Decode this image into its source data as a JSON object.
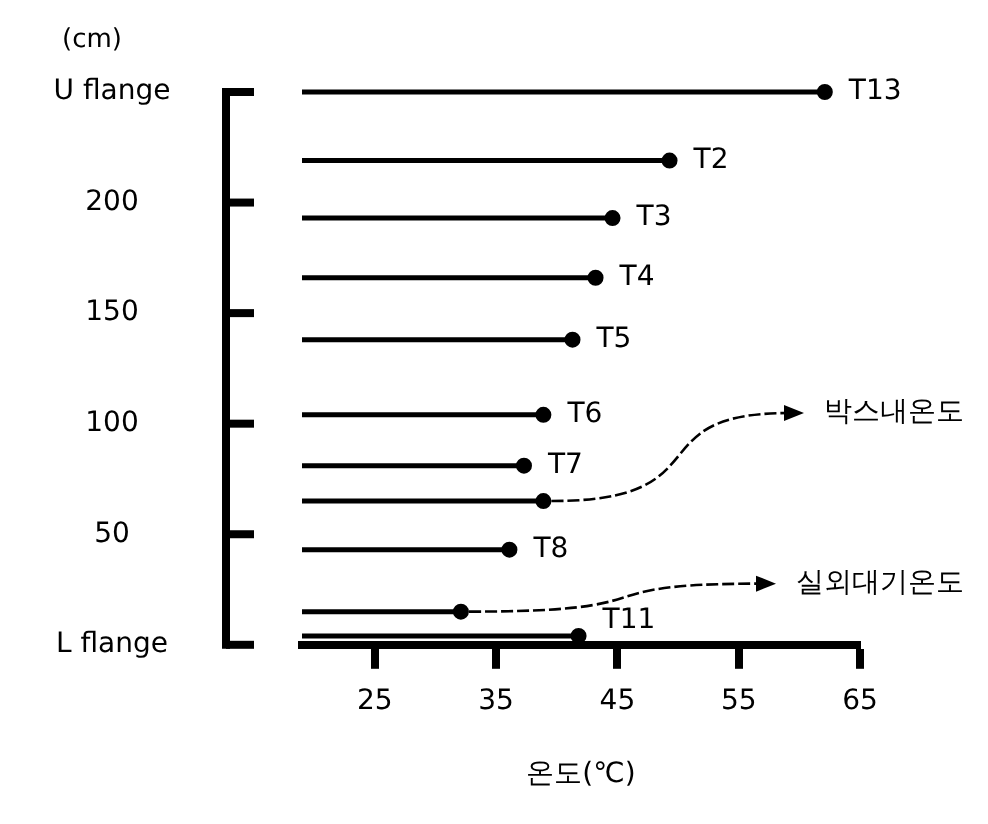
{
  "chart_data": {
    "type": "lollipop",
    "orientation": "horizontal",
    "xlabel": "온도(℃)",
    "ylabel": "(cm)",
    "x": [
      250,
      219,
      193,
      166,
      138,
      104,
      81,
      65,
      43,
      15,
      4
    ],
    "values": [
      62.1,
      49.3,
      44.6,
      43.2,
      41.3,
      38.9,
      37.3,
      38.9,
      36.1,
      32.1,
      41.8
    ],
    "value_labels": [
      "T13",
      "T2",
      "T3",
      "T4",
      "T5",
      "T6",
      "T7",
      null,
      "T8",
      null,
      "T11"
    ],
    "color": "#000000",
    "marker": "circle",
    "xlim": [
      19,
      65
    ],
    "xticks": [
      25,
      35,
      45,
      55,
      65
    ],
    "ylim": [
      0,
      250
    ],
    "yticks": [
      {
        "value": 0,
        "label": "L flange"
      },
      50,
      100,
      150,
      200,
      {
        "value": 250,
        "label": "U flange"
      }
    ],
    "annotations": [
      {
        "text": "박스내온도",
        "x": 38.9,
        "y": 65
      },
      {
        "text": "실외대기온도",
        "x": 32.1,
        "y": 15
      }
    ],
    "grid": false,
    "legend": false
  }
}
